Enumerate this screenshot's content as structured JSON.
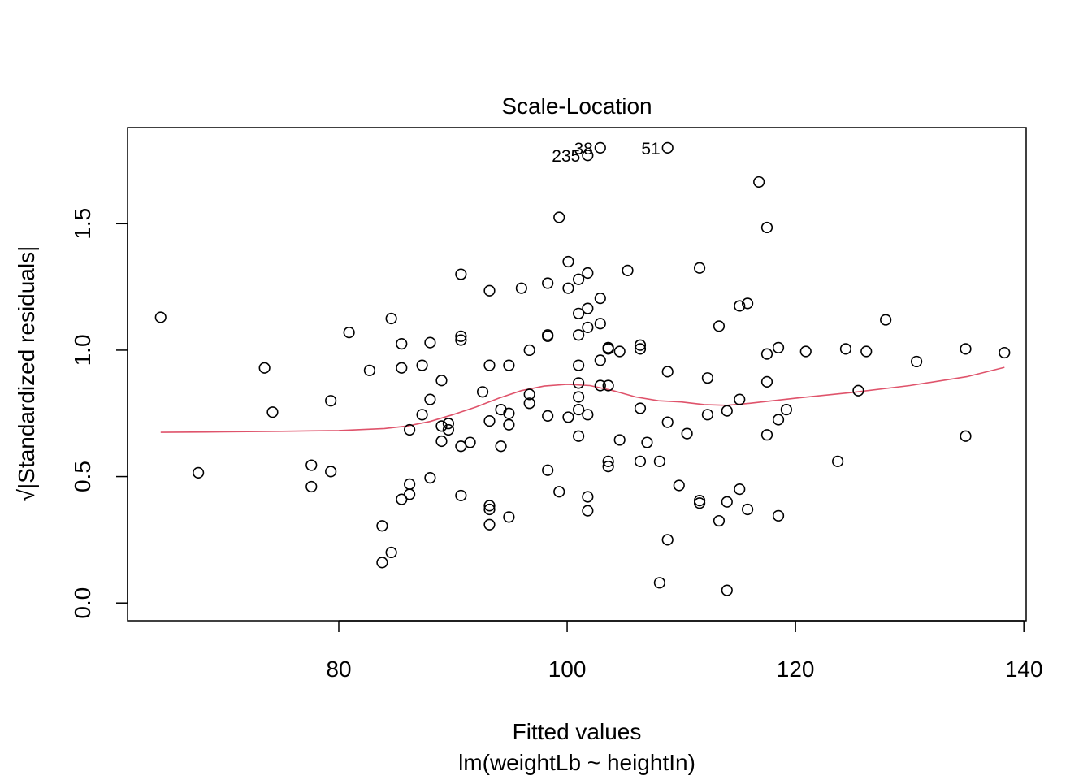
{
  "chart_data": {
    "type": "scatter",
    "title": "Scale-Location",
    "xlabel": "Fitted values",
    "xsublabel": "lm(weightLb ~ heightIn)",
    "ylabel": "√|Standardized residuals|",
    "xlim": [
      61.5,
      140.2
    ],
    "ylim": [
      -0.07,
      1.88
    ],
    "xticks": [
      80,
      100,
      120,
      140
    ],
    "xtick_labels": [
      "80",
      "100",
      "120",
      "140"
    ],
    "yticks": [
      0.0,
      0.5,
      1.0,
      1.5
    ],
    "ytick_labels": [
      "0.0",
      "0.5",
      "1.0",
      "1.5"
    ],
    "grid": false,
    "legend": "none",
    "point_color": "#000000",
    "smooth_color": "#DF536B",
    "points": [
      [
        64.4,
        1.13
      ],
      [
        67.7,
        0.515
      ],
      [
        73.5,
        0.93
      ],
      [
        74.2,
        0.755
      ],
      [
        77.6,
        0.545
      ],
      [
        77.6,
        0.46
      ],
      [
        79.3,
        0.52
      ],
      [
        79.3,
        0.8
      ],
      [
        80.9,
        1.07
      ],
      [
        82.7,
        0.92
      ],
      [
        83.8,
        0.305
      ],
      [
        83.8,
        0.16
      ],
      [
        84.6,
        1.125
      ],
      [
        84.6,
        0.2
      ],
      [
        85.5,
        1.025
      ],
      [
        85.5,
        0.93
      ],
      [
        85.5,
        0.41
      ],
      [
        86.2,
        0.685
      ],
      [
        86.2,
        0.47
      ],
      [
        86.2,
        0.43
      ],
      [
        87.3,
        0.94
      ],
      [
        87.3,
        0.745
      ],
      [
        88.0,
        1.03
      ],
      [
        88.0,
        0.805
      ],
      [
        88.0,
        0.495
      ],
      [
        89.0,
        0.88
      ],
      [
        89.0,
        0.7
      ],
      [
        89.0,
        0.64
      ],
      [
        89.6,
        0.71
      ],
      [
        89.6,
        0.685
      ],
      [
        90.7,
        1.3
      ],
      [
        90.7,
        1.055
      ],
      [
        90.7,
        1.04
      ],
      [
        90.7,
        0.62
      ],
      [
        90.7,
        0.425
      ],
      [
        91.5,
        0.635
      ],
      [
        92.6,
        0.835
      ],
      [
        93.2,
        1.235
      ],
      [
        93.2,
        0.94
      ],
      [
        93.2,
        0.72
      ],
      [
        93.2,
        0.385
      ],
      [
        93.2,
        0.37
      ],
      [
        93.2,
        0.31
      ],
      [
        94.2,
        0.765
      ],
      [
        94.2,
        0.62
      ],
      [
        94.9,
        0.94
      ],
      [
        94.9,
        0.75
      ],
      [
        94.9,
        0.705
      ],
      [
        94.9,
        0.34
      ],
      [
        96.0,
        1.245
      ],
      [
        96.7,
        1.0
      ],
      [
        96.7,
        0.825
      ],
      [
        96.7,
        0.79
      ],
      [
        98.3,
        1.265
      ],
      [
        98.3,
        1.06
      ],
      [
        98.3,
        1.055
      ],
      [
        98.3,
        0.74
      ],
      [
        98.3,
        0.525
      ],
      [
        99.3,
        1.525
      ],
      [
        99.3,
        0.44
      ],
      [
        100.1,
        1.35
      ],
      [
        100.1,
        1.245
      ],
      [
        100.1,
        0.735
      ],
      [
        101.0,
        1.28
      ],
      [
        101.0,
        1.145
      ],
      [
        101.0,
        1.06
      ],
      [
        101.0,
        0.94
      ],
      [
        101.0,
        0.87
      ],
      [
        101.0,
        0.815
      ],
      [
        101.0,
        0.765
      ],
      [
        101.0,
        0.66
      ],
      [
        101.8,
        1.77
      ],
      [
        101.8,
        1.305
      ],
      [
        101.8,
        1.165
      ],
      [
        101.8,
        1.09
      ],
      [
        101.8,
        0.745
      ],
      [
        101.8,
        0.42
      ],
      [
        101.8,
        0.365
      ],
      [
        102.9,
        1.8
      ],
      [
        102.9,
        1.205
      ],
      [
        102.9,
        1.105
      ],
      [
        102.9,
        0.96
      ],
      [
        102.9,
        0.86
      ],
      [
        103.6,
        1.01
      ],
      [
        103.6,
        1.005
      ],
      [
        103.6,
        0.86
      ],
      [
        103.6,
        0.56
      ],
      [
        103.6,
        0.54
      ],
      [
        104.6,
        0.995
      ],
      [
        104.6,
        0.645
      ],
      [
        105.3,
        1.315
      ],
      [
        106.4,
        1.02
      ],
      [
        106.4,
        1.005
      ],
      [
        106.4,
        0.77
      ],
      [
        106.4,
        0.56
      ],
      [
        107.0,
        0.635
      ],
      [
        108.1,
        0.56
      ],
      [
        108.1,
        0.08
      ],
      [
        108.8,
        1.8
      ],
      [
        108.8,
        0.915
      ],
      [
        108.8,
        0.715
      ],
      [
        108.8,
        0.25
      ],
      [
        109.8,
        0.465
      ],
      [
        110.5,
        0.67
      ],
      [
        111.6,
        1.325
      ],
      [
        111.6,
        0.405
      ],
      [
        111.6,
        0.395
      ],
      [
        112.3,
        0.89
      ],
      [
        112.3,
        0.745
      ],
      [
        113.3,
        1.095
      ],
      [
        113.3,
        0.325
      ],
      [
        114.0,
        0.76
      ],
      [
        114.0,
        0.4
      ],
      [
        114.0,
        0.05
      ],
      [
        115.1,
        1.175
      ],
      [
        115.1,
        0.805
      ],
      [
        115.1,
        0.45
      ],
      [
        115.8,
        1.185
      ],
      [
        115.8,
        0.37
      ],
      [
        116.8,
        1.665
      ],
      [
        117.5,
        1.485
      ],
      [
        117.5,
        0.985
      ],
      [
        117.5,
        0.875
      ],
      [
        117.5,
        0.665
      ],
      [
        118.5,
        1.01
      ],
      [
        118.5,
        0.725
      ],
      [
        118.5,
        0.345
      ],
      [
        119.2,
        0.765
      ],
      [
        120.9,
        0.995
      ],
      [
        123.7,
        0.56
      ],
      [
        124.4,
        1.005
      ],
      [
        125.5,
        0.84
      ],
      [
        126.2,
        0.995
      ],
      [
        127.9,
        1.12
      ],
      [
        130.6,
        0.955
      ],
      [
        134.9,
        1.005
      ],
      [
        134.9,
        0.66
      ],
      [
        138.3,
        0.99
      ]
    ],
    "annotations": [
      {
        "label": "38",
        "x": 102.9,
        "y": 1.8
      },
      {
        "label": "235",
        "x": 101.8,
        "y": 1.77
      },
      {
        "label": "51",
        "x": 108.8,
        "y": 1.8
      }
    ],
    "smooth_line": [
      [
        64.4,
        0.675
      ],
      [
        70,
        0.677
      ],
      [
        75,
        0.679
      ],
      [
        80,
        0.682
      ],
      [
        84,
        0.69
      ],
      [
        86,
        0.7
      ],
      [
        88,
        0.718
      ],
      [
        90,
        0.745
      ],
      [
        92,
        0.775
      ],
      [
        94,
        0.81
      ],
      [
        96,
        0.84
      ],
      [
        98,
        0.858
      ],
      [
        100,
        0.865
      ],
      [
        102,
        0.86
      ],
      [
        104,
        0.84
      ],
      [
        106,
        0.815
      ],
      [
        108,
        0.8
      ],
      [
        110,
        0.795
      ],
      [
        112,
        0.785
      ],
      [
        114,
        0.782
      ],
      [
        116,
        0.79
      ],
      [
        118,
        0.8
      ],
      [
        120,
        0.81
      ],
      [
        125,
        0.833
      ],
      [
        130,
        0.86
      ],
      [
        135,
        0.895
      ],
      [
        138.3,
        0.932
      ]
    ]
  }
}
